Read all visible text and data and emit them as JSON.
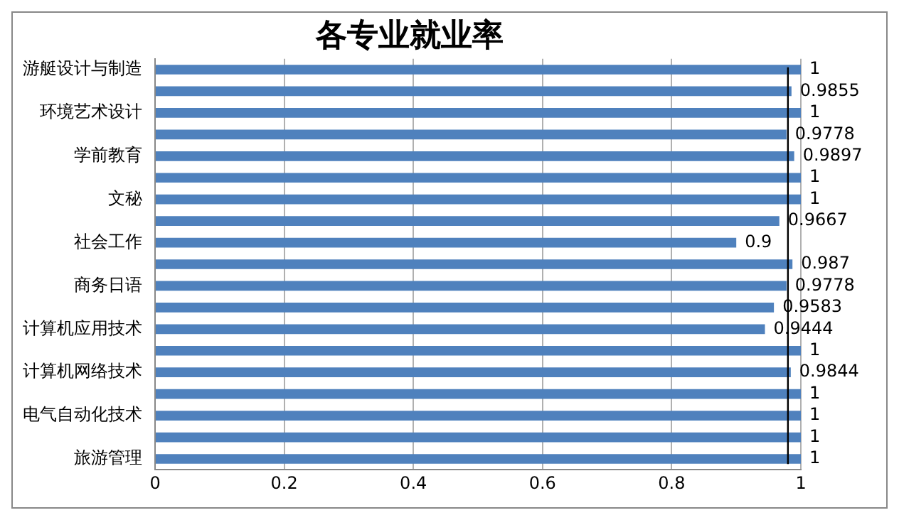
{
  "chart_data": {
    "type": "bar",
    "orientation": "horizontal",
    "title": "各专业就业率",
    "categories": [
      "游艇设计与制造",
      null,
      "环境艺术设计",
      null,
      "学前教育",
      null,
      "文秘",
      null,
      "社会工作",
      null,
      "商务日语",
      null,
      "计算机应用技术",
      null,
      "计算机网络技术",
      null,
      "电气自动化技术",
      null,
      "旅游管理"
    ],
    "values": [
      1,
      0.9855,
      1,
      0.9778,
      0.9897,
      1,
      1,
      0.9667,
      0.9,
      0.987,
      0.9778,
      0.9583,
      0.9444,
      1,
      0.9844,
      1,
      1,
      1,
      1
    ],
    "color": "#4f81bd",
    "xlim": [
      0,
      1
    ],
    "xticks": [
      0,
      0.2,
      0.4,
      0.6,
      0.8,
      1
    ],
    "grid": "x",
    "data_labels": true,
    "legend": false,
    "ref_lines": [
      {
        "axis": "x",
        "value": 0.98,
        "color": "#000000"
      }
    ]
  }
}
